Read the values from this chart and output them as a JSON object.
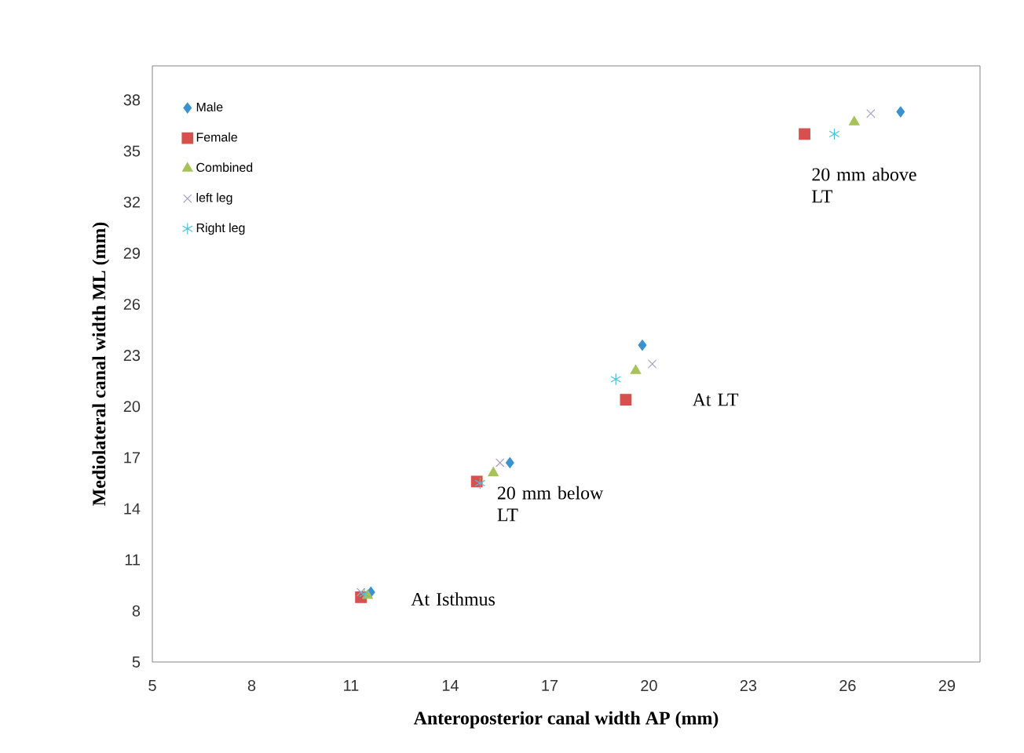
{
  "chart_data": {
    "type": "scatter",
    "xlabel": "Anteroposterior canal width AP (mm)",
    "ylabel": "Mediolateral canal width ML (mm)",
    "xlim": [
      5,
      30
    ],
    "ylim": [
      5,
      40
    ],
    "xticks": [
      5,
      8,
      11,
      14,
      17,
      20,
      23,
      26,
      29
    ],
    "yticks": [
      5,
      8,
      11,
      14,
      17,
      20,
      23,
      26,
      29,
      32,
      35,
      38
    ],
    "grid": false,
    "legend": "top left",
    "series": [
      {
        "name": "Male",
        "color": "#3a92cf",
        "marker": "diamond",
        "x": [
          11.6,
          15.8,
          19.8,
          27.6
        ],
        "values": [
          9.1,
          16.7,
          23.6,
          37.3
        ]
      },
      {
        "name": "Female",
        "color": "#d6504d",
        "marker": "square",
        "x": [
          11.3,
          14.8,
          19.3,
          24.7
        ],
        "values": [
          8.8,
          15.6,
          20.4,
          36.0
        ]
      },
      {
        "name": "Combined",
        "color": "#a8c25a",
        "marker": "triangle",
        "x": [
          11.5,
          15.3,
          19.6,
          26.2
        ],
        "values": [
          8.9,
          16.1,
          22.1,
          36.7
        ]
      },
      {
        "name": "left leg",
        "color": "#a99bc9",
        "marker": "cross",
        "x": [
          11.3,
          15.5,
          20.1,
          26.7
        ],
        "values": [
          9.1,
          16.7,
          22.5,
          37.2
        ]
      },
      {
        "name": "Right leg",
        "color": "#4dbfd9",
        "x": [
          11.4,
          14.9,
          19.0,
          25.6
        ],
        "values": [
          9.0,
          15.5,
          21.6,
          36.0
        ]
      }
    ],
    "annotations": [
      "20 mm above LT",
      "At  LT",
      "20 mm below LT",
      "At Isthmus"
    ]
  }
}
